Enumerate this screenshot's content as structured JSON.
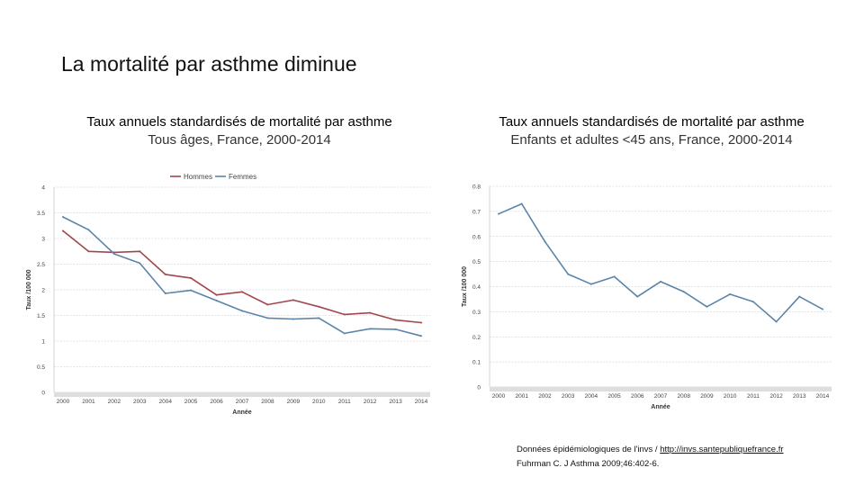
{
  "slide": {
    "title": "La mortalité par asthme diminue"
  },
  "chart_data": [
    {
      "type": "line",
      "title": "Taux annuels standardisés de mortalité par asthme",
      "subtitle": "Tous âges, France, 2000-2014",
      "xlabel": "Année",
      "ylabel": "Taux /100 000",
      "ylim": [
        0,
        4
      ],
      "yticks": [
        "0",
        "0.5",
        "1",
        "1.5",
        "2",
        "2.5",
        "3",
        "3.5",
        "4"
      ],
      "grid": true,
      "legend": "top-center",
      "categories": [
        "2000",
        "2001",
        "2002",
        "2003",
        "2004",
        "2005",
        "2006",
        "2007",
        "2008",
        "2009",
        "2010",
        "2011",
        "2012",
        "2013",
        "2014"
      ],
      "series": [
        {
          "name": "Hommes",
          "color": "#a0474d",
          "values": [
            3.15,
            2.75,
            2.73,
            2.75,
            2.3,
            2.23,
            1.9,
            1.96,
            1.71,
            1.8,
            1.67,
            1.52,
            1.55,
            1.41,
            1.36
          ]
        },
        {
          "name": "Femmes",
          "color": "#5b84a8",
          "values": [
            3.42,
            3.17,
            2.7,
            2.52,
            1.93,
            1.99,
            1.79,
            1.59,
            1.45,
            1.43,
            1.45,
            1.15,
            1.24,
            1.23,
            1.1
          ]
        }
      ]
    },
    {
      "type": "line",
      "title": "Taux annuels standardisés de mortalité par asthme",
      "subtitle": "Enfants et adultes <45 ans, France, 2000-2014",
      "xlabel": "Année",
      "ylabel": "Taux /100 000",
      "ylim": [
        0,
        0.8
      ],
      "yticks": [
        "0",
        "0.1",
        "0.2",
        "0.3",
        "0.4",
        "0.5",
        "0.6",
        "0.7",
        "0.8"
      ],
      "grid": true,
      "categories": [
        "2000",
        "2001",
        "2002",
        "2003",
        "2004",
        "2005",
        "2006",
        "2007",
        "2008",
        "2009",
        "2010",
        "2011",
        "2012",
        "2013",
        "2014"
      ],
      "series": [
        {
          "color": "#5b84a8",
          "values": [
            0.69,
            0.73,
            0.58,
            0.45,
            0.41,
            0.44,
            0.36,
            0.42,
            0.38,
            0.32,
            0.37,
            0.34,
            0.26,
            0.36,
            0.31
          ]
        }
      ]
    }
  ],
  "source": {
    "line1_prefix": "Données épidémiologiques de l'invs / ",
    "line1_link": "http://invs.santepubliquefrance.fr",
    "line2": "Fuhrman C. J Asthma 2009;46:402-6."
  }
}
